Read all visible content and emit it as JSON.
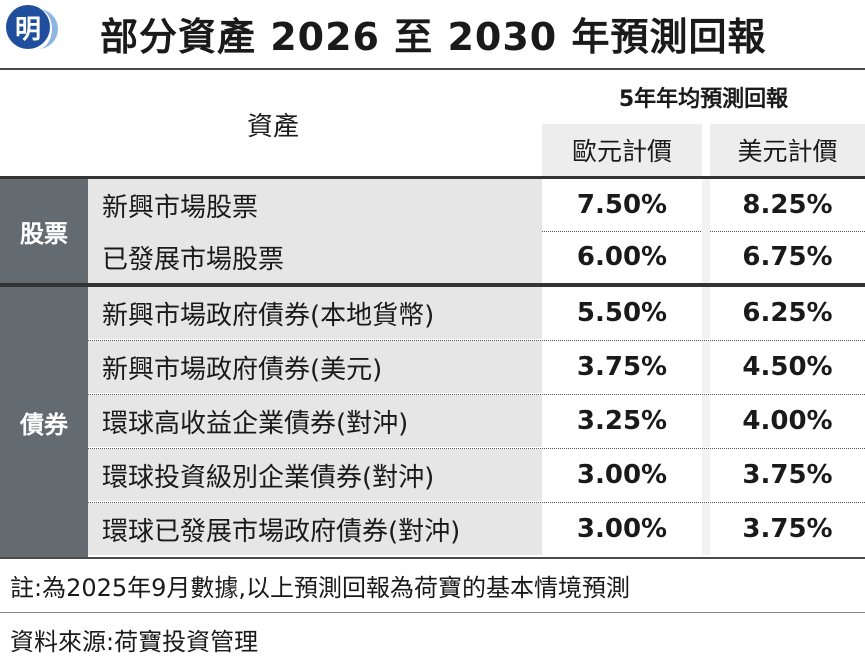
{
  "header": {
    "logo_char": "明",
    "title": "部分資產 2026 至 2030 年預測回報"
  },
  "table": {
    "asset_header": "資產",
    "group_header": "5年年均預測回報",
    "col_eur": "歐元計價",
    "col_usd": "美元計價",
    "categories": [
      {
        "label": "股票"
      },
      {
        "label": "債券"
      }
    ],
    "rows": [
      {
        "name": "新興市場股票",
        "eur": "7.50%",
        "usd": "8.25%"
      },
      {
        "name": "已發展市場股票",
        "eur": "6.00%",
        "usd": "6.75%"
      },
      {
        "name": "新興市場政府債券(本地貨幣)",
        "eur": "5.50%",
        "usd": "6.25%"
      },
      {
        "name": "新興市場政府債券(美元)",
        "eur": "3.75%",
        "usd": "4.50%"
      },
      {
        "name": "環球高收益企業債券(對沖)",
        "eur": "3.25%",
        "usd": "4.00%"
      },
      {
        "name": "環球投資級別企業債券(對沖)",
        "eur": "3.00%",
        "usd": "3.75%"
      },
      {
        "name": "環球已發展市場政府債券(對沖)",
        "eur": "3.00%",
        "usd": "3.75%"
      }
    ]
  },
  "footer": {
    "note": "註:為2025年9月數據,以上預測回報為荷寶的基本情境預測",
    "source": "資料來源:荷寶投資管理"
  },
  "colors": {
    "category_bg": "#646b70",
    "row_bg": "#e6e6e6",
    "logo_blue": "#1f4e9c"
  }
}
